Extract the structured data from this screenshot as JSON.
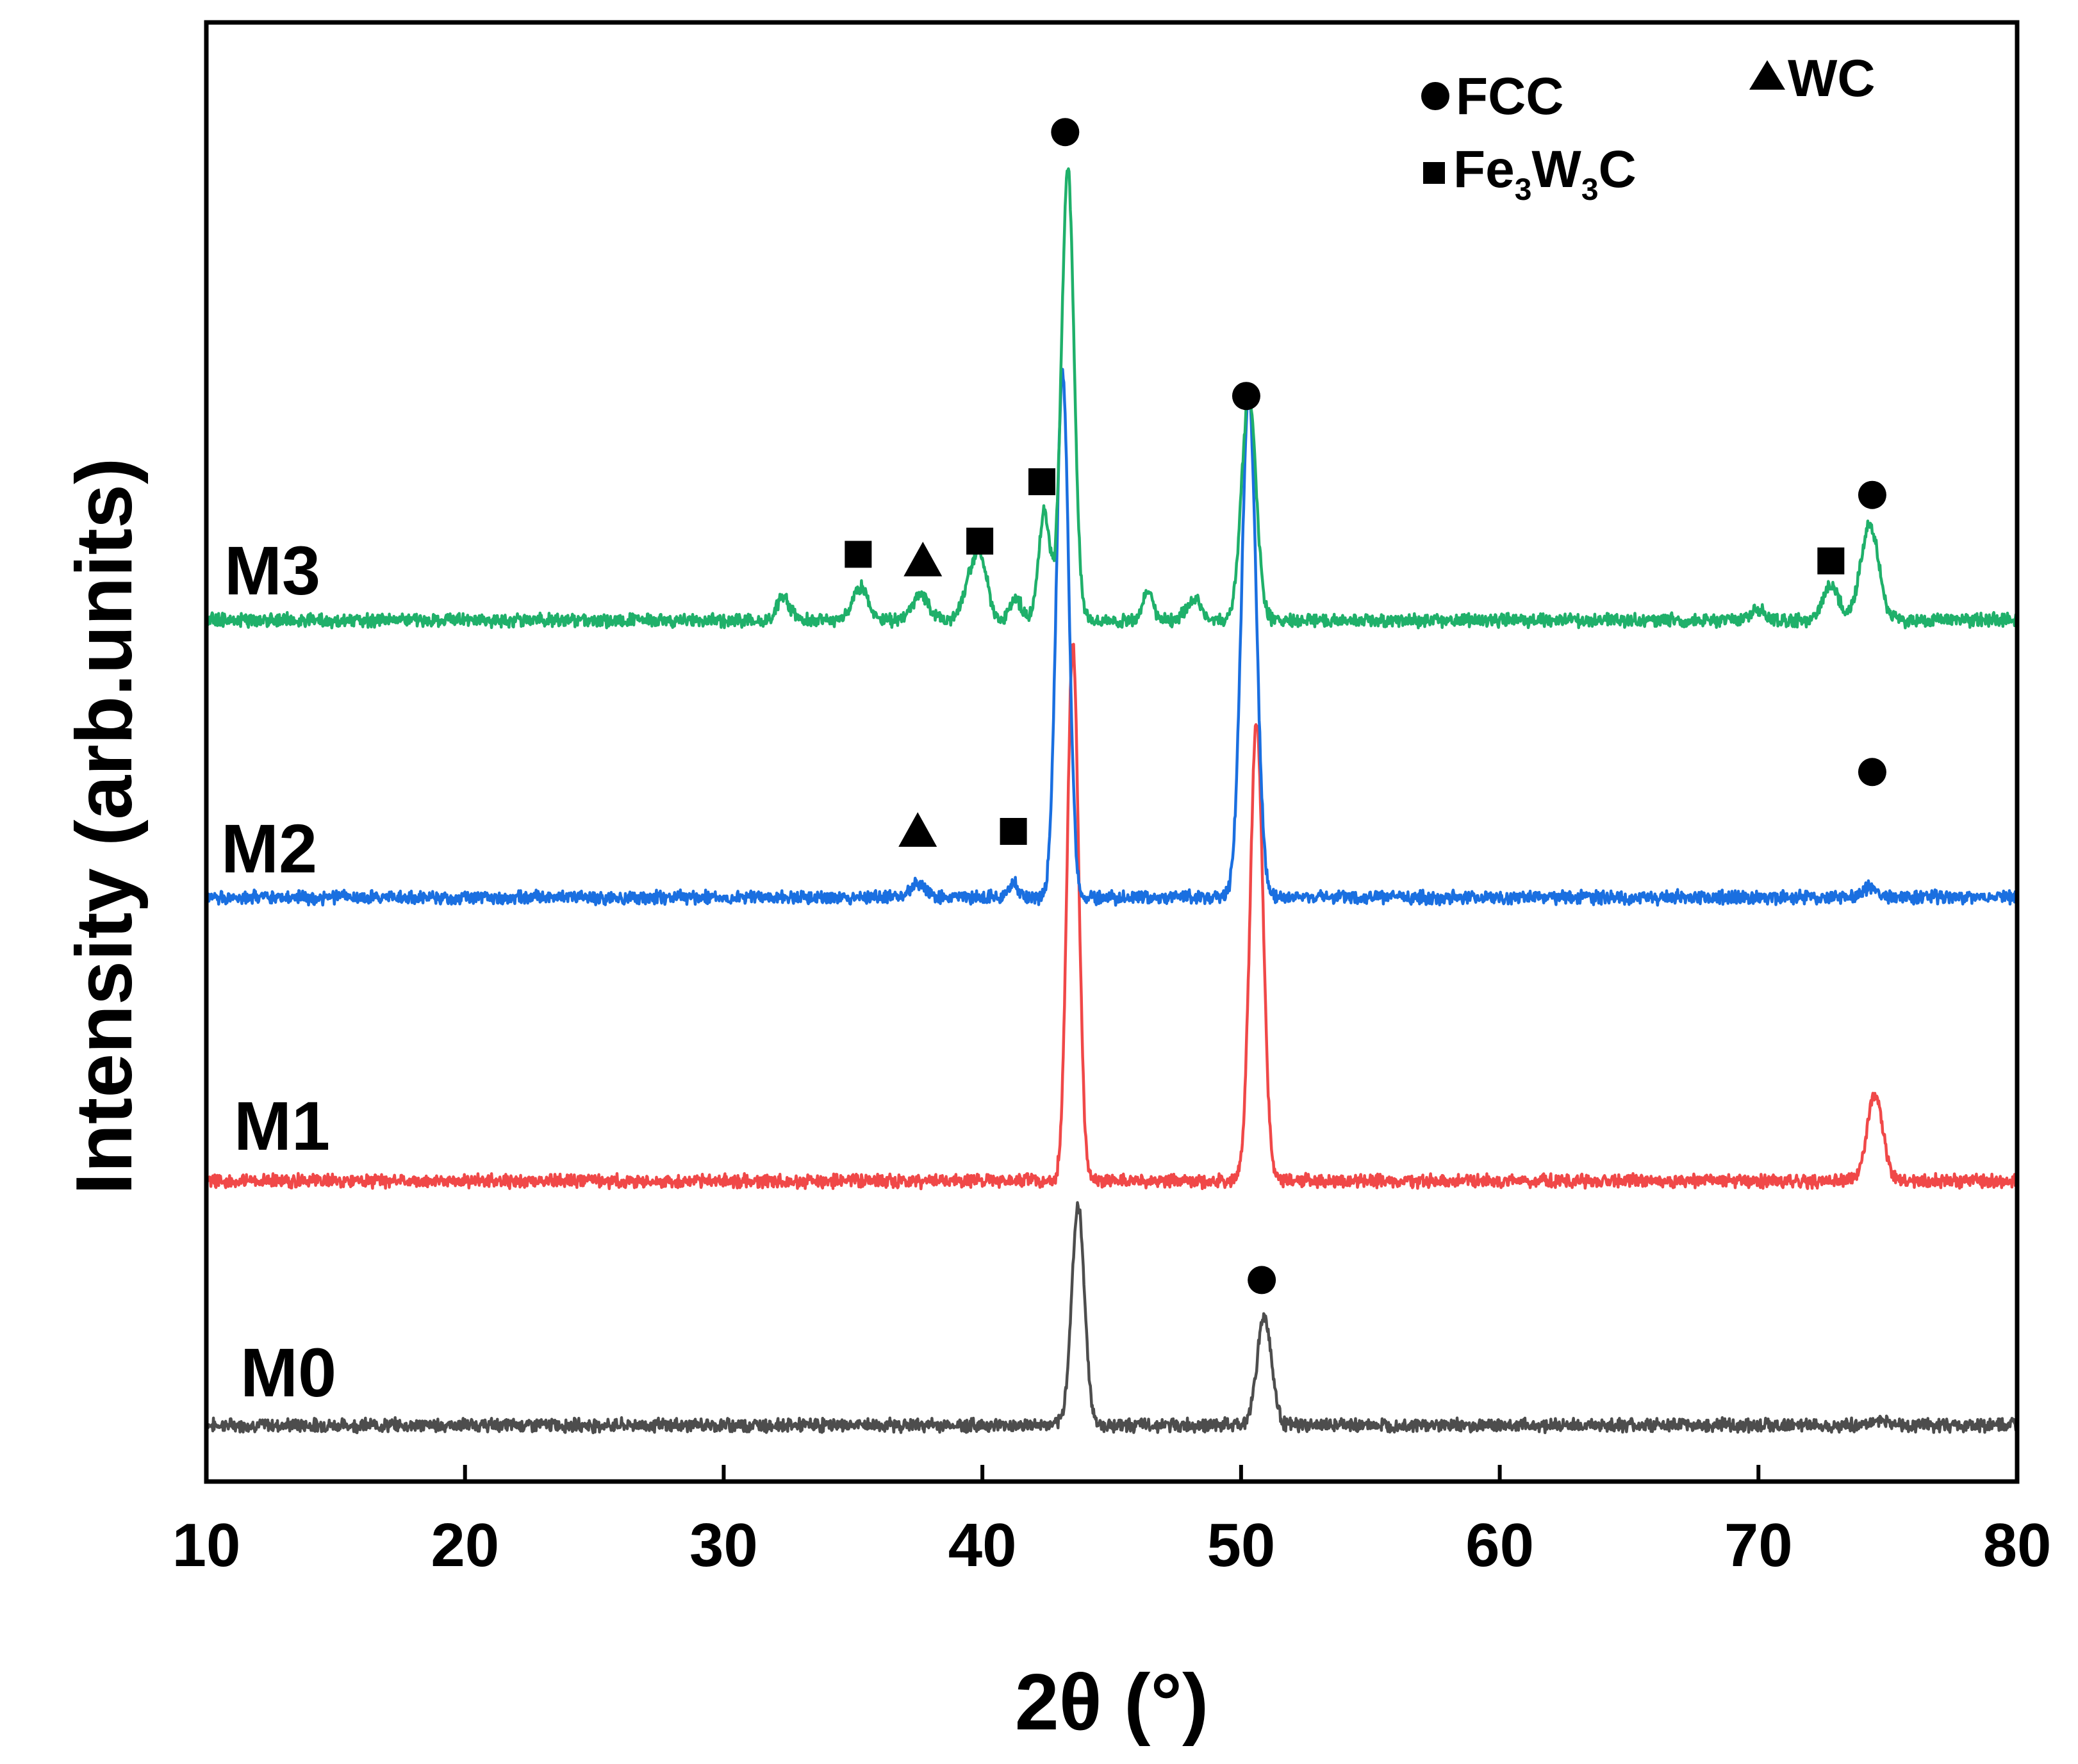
{
  "chart_data": {
    "type": "line",
    "title": "",
    "xlabel": "2θ (°)",
    "ylabel": "Intensity (arb.units)",
    "xlim": [
      10,
      80
    ],
    "xticks": [
      "10",
      "20",
      "30",
      "40",
      "50",
      "60",
      "70",
      "80"
    ],
    "yticks_shown": false,
    "series": [
      {
        "name": "M0",
        "color": "#4d4d4d",
        "offset": 0,
        "peaks": [
          [
            43.7,
            33.0,
            0.25
          ],
          [
            50.9,
            16.5,
            0.28
          ],
          [
            74.7,
            0.8,
            0.3
          ]
        ]
      },
      {
        "name": "M1",
        "color": "#f04848",
        "offset": 37,
        "peaks": [
          [
            43.5,
            81.5,
            0.22
          ],
          [
            50.6,
            69.5,
            0.25
          ],
          [
            74.5,
            13.3,
            0.3
          ]
        ]
      },
      {
        "name": "M2",
        "color": "#1a6fe0",
        "offset": 80,
        "peaks": [
          [
            43.1,
            79.5,
            0.24
          ],
          [
            50.3,
            76.5,
            0.28
          ],
          [
            37.5,
            2.0,
            0.3
          ],
          [
            41.2,
            2.2,
            0.2
          ],
          [
            74.3,
            1.5,
            0.3
          ]
        ]
      },
      {
        "name": "M3",
        "color": "#1fb06a",
        "offset": 122,
        "peaks": [
          [
            43.3,
            68.5,
            0.24
          ],
          [
            50.3,
            34.0,
            0.28
          ],
          [
            42.4,
            16.5,
            0.22
          ],
          [
            74.3,
            14.5,
            0.35
          ],
          [
            72.8,
            5.5,
            0.3
          ],
          [
            32.3,
            3.5,
            0.25
          ],
          [
            35.3,
            5.0,
            0.3
          ],
          [
            37.6,
            4.0,
            0.3
          ],
          [
            39.6,
            7.0,
            0.3
          ],
          [
            40.0,
            6.5,
            0.25
          ],
          [
            41.3,
            3.0,
            0.25
          ],
          [
            46.4,
            4.5,
            0.2
          ],
          [
            48.2,
            3.0,
            0.3
          ],
          [
            70.0,
            1.5,
            0.3
          ]
        ]
      }
    ],
    "phase_markers": [
      {
        "phase": "FCC",
        "symbol": "circle",
        "x": 43.2,
        "y": 196
      },
      {
        "phase": "FCC",
        "symbol": "circle",
        "x": 50.2,
        "y": 156
      },
      {
        "phase": "FCC",
        "symbol": "circle",
        "x": 74.4,
        "y": 141
      },
      {
        "phase": "FCC",
        "symbol": "circle",
        "x": 74.4,
        "y": 99
      },
      {
        "phase": "FCC",
        "symbol": "circle",
        "x": 50.8,
        "y": 22
      },
      {
        "phase": "Fe3W3C",
        "symbol": "square",
        "x": 42.3,
        "y": 143
      },
      {
        "phase": "Fe3W3C",
        "symbol": "square",
        "x": 39.9,
        "y": 134
      },
      {
        "phase": "Fe3W3C",
        "symbol": "square",
        "x": 35.2,
        "y": 132
      },
      {
        "phase": "Fe3W3C",
        "symbol": "square",
        "x": 72.8,
        "y": 131
      },
      {
        "phase": "Fe3W3C",
        "symbol": "square",
        "x": 41.2,
        "y": 90
      },
      {
        "phase": "WC",
        "symbol": "triangle",
        "x": 37.7,
        "y": 131
      },
      {
        "phase": "WC",
        "symbol": "triangle",
        "x": 37.5,
        "y": 90
      }
    ],
    "legend": {
      "position": "top-right",
      "entries": [
        {
          "symbol": "circle",
          "label": "FCC"
        },
        {
          "symbol": "triangle",
          "label": "WC"
        },
        {
          "symbol": "square",
          "label_main": "Fe",
          "sub1": "3",
          "label_mid": "W",
          "sub2": "3",
          "label_end": "C"
        }
      ]
    }
  }
}
